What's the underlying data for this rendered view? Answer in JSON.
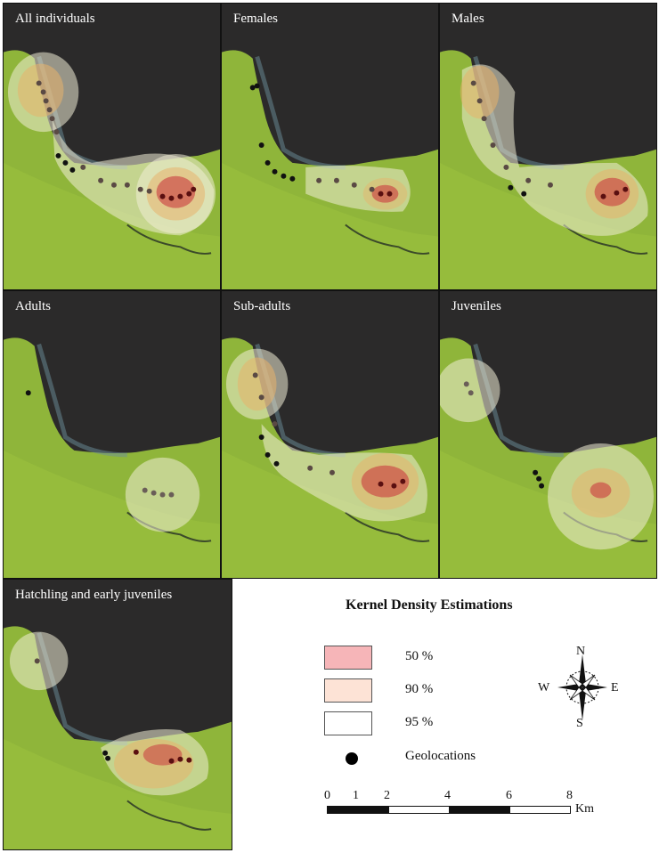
{
  "panels": [
    {
      "id": "all",
      "label": "All individuals"
    },
    {
      "id": "females",
      "label": "Females"
    },
    {
      "id": "males",
      "label": "Males"
    },
    {
      "id": "adults",
      "label": "Adults"
    },
    {
      "id": "subadults",
      "label": "Sub-adults"
    },
    {
      "id": "juveniles",
      "label": "Juveniles"
    },
    {
      "id": "hatchling",
      "label": "Hatchling and early juveniles"
    }
  ],
  "legend": {
    "title": "Kernel Density Estimations",
    "items": [
      {
        "label": "50 %",
        "color": "#f6b5b8"
      },
      {
        "label": "90 %",
        "color": "#fde3d6"
      },
      {
        "label": "95 %",
        "color": "#ffffff"
      },
      {
        "label": "Geolocations",
        "color": "#000000"
      }
    ]
  },
  "compass": {
    "n": "N",
    "s": "S",
    "e": "E",
    "w": "W"
  },
  "scalebar": {
    "ticks": [
      "0",
      "1",
      "2",
      "4",
      "6",
      "8"
    ],
    "unit": "Km"
  },
  "colors": {
    "water": "#2b2a2a",
    "land": "#8fb53a",
    "kde50": "#c0262c",
    "kde90": "#e87b2a",
    "kde95": "#f2eccc",
    "points": "#4a3a38"
  }
}
